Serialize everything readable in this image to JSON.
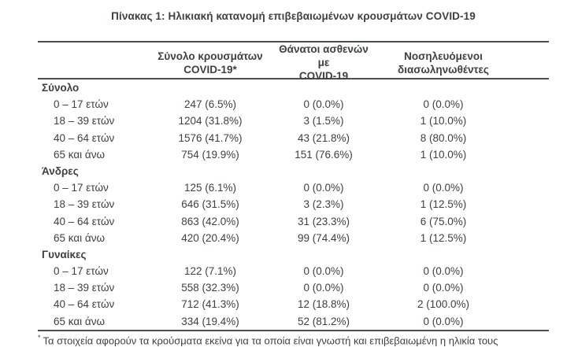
{
  "page": {
    "title": "Πίνακας 1: Ηλικιακή κατανομή επιβεβαιωμένων κρουσμάτων COVID-19",
    "footnote_marker": "*",
    "footnote": "Τα στοιχεία αφορούν τα κρούσματα εκείνα για τα οποία είναι γνωστή και επιβεβαιωμένη η ηλικία τους"
  },
  "colors": {
    "text": "#3d4146",
    "rule": "#4a4e53",
    "background": "#ffffff"
  },
  "table": {
    "headers": [
      {
        "line1": "Σύνολο κρουσμάτων",
        "line2": "COVID-19*"
      },
      {
        "line1": "Θάνατοι ασθενών με",
        "line2": "COVID-19"
      },
      {
        "line1": "Νοσηλευόμενοι",
        "line2": "διασωληνωθέντες"
      }
    ],
    "sections": [
      {
        "label": "Σύνολο",
        "rows": [
          {
            "label": "0 – 17 ετών",
            "cases": "247 (6.5%)",
            "deaths": "0 (0.0%)",
            "intubated": "0 (0.0%)"
          },
          {
            "label": "18 – 39 ετών",
            "cases": "1204 (31.8%)",
            "deaths": "3 (1.5%)",
            "intubated": "1 (10.0%)"
          },
          {
            "label": "40 – 64 ετών",
            "cases": "1576 (41.7%)",
            "deaths": "43 (21.8%)",
            "intubated": "8 (80.0%)"
          },
          {
            "label": "65 και άνω",
            "cases": "754 (19.9%)",
            "deaths": "151 (76.6%)",
            "intubated": "1 (10.0%)"
          }
        ]
      },
      {
        "label": "Άνδρες",
        "rows": [
          {
            "label": "0 – 17 ετών",
            "cases": "125 (6.1%)",
            "deaths": "0 (0.0%)",
            "intubated": "0 (0.0%)"
          },
          {
            "label": "18 – 39 ετών",
            "cases": "646 (31.5%)",
            "deaths": "3 (2.3%)",
            "intubated": "1 (12.5%)"
          },
          {
            "label": "40 – 64 ετών",
            "cases": "863 (42.0%)",
            "deaths": "31 (23.3%)",
            "intubated": "6 (75.0%)"
          },
          {
            "label": "65 και άνω",
            "cases": "420 (20.4%)",
            "deaths": "99 (74.4%)",
            "intubated": "1 (12.5%)"
          }
        ]
      },
      {
        "label": "Γυναίκες",
        "rows": [
          {
            "label": "0 – 17 ετών",
            "cases": "122 (7.1%)",
            "deaths": "0 (0.0%)",
            "intubated": "0 (0.0%)"
          },
          {
            "label": "18 – 39 ετών",
            "cases": "558 (32.3%)",
            "deaths": "0 (0.0%)",
            "intubated": "0 (0.0%)"
          },
          {
            "label": "40 – 64 ετών",
            "cases": "712 (41.3%)",
            "deaths": "12 (18.8%)",
            "intubated": "2 (100.0%)"
          },
          {
            "label": "65 και άνω",
            "cases": "334 (19.4%)",
            "deaths": "52 (81.2%)",
            "intubated": "0 (0.0%)"
          }
        ]
      }
    ]
  }
}
